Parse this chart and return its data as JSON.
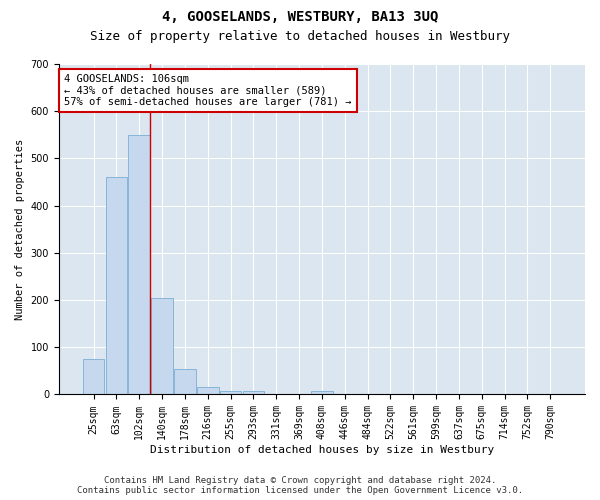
{
  "title": "4, GOOSELANDS, WESTBURY, BA13 3UQ",
  "subtitle": "Size of property relative to detached houses in Westbury",
  "xlabel": "Distribution of detached houses by size in Westbury",
  "ylabel": "Number of detached properties",
  "categories": [
    "25sqm",
    "63sqm",
    "102sqm",
    "140sqm",
    "178sqm",
    "216sqm",
    "255sqm",
    "293sqm",
    "331sqm",
    "369sqm",
    "408sqm",
    "446sqm",
    "484sqm",
    "522sqm",
    "561sqm",
    "599sqm",
    "637sqm",
    "675sqm",
    "714sqm",
    "752sqm",
    "790sqm"
  ],
  "values": [
    75,
    460,
    550,
    205,
    55,
    15,
    8,
    8,
    0,
    0,
    8,
    0,
    0,
    0,
    0,
    0,
    0,
    0,
    0,
    0,
    0
  ],
  "bar_color": "#c5d8ed",
  "bar_edge_color": "#7aaed4",
  "highlight_bar_index": 2,
  "highlight_line_color": "#cc0000",
  "annotation_text": "4 GOOSELANDS: 106sqm\n← 43% of detached houses are smaller (589)\n57% of semi-detached houses are larger (781) →",
  "annotation_box_color": "#ffffff",
  "annotation_box_edge": "#cc0000",
  "ylim": [
    0,
    700
  ],
  "yticks": [
    0,
    100,
    200,
    300,
    400,
    500,
    600,
    700
  ],
  "background_color": "#dce6f0",
  "figure_color": "#ffffff",
  "grid_color": "#ffffff",
  "footer_line1": "Contains HM Land Registry data © Crown copyright and database right 2024.",
  "footer_line2": "Contains public sector information licensed under the Open Government Licence v3.0.",
  "title_fontsize": 10,
  "subtitle_fontsize": 9,
  "annotation_fontsize": 7.5,
  "footer_fontsize": 6.5,
  "ylabel_fontsize": 7.5,
  "xlabel_fontsize": 8
}
